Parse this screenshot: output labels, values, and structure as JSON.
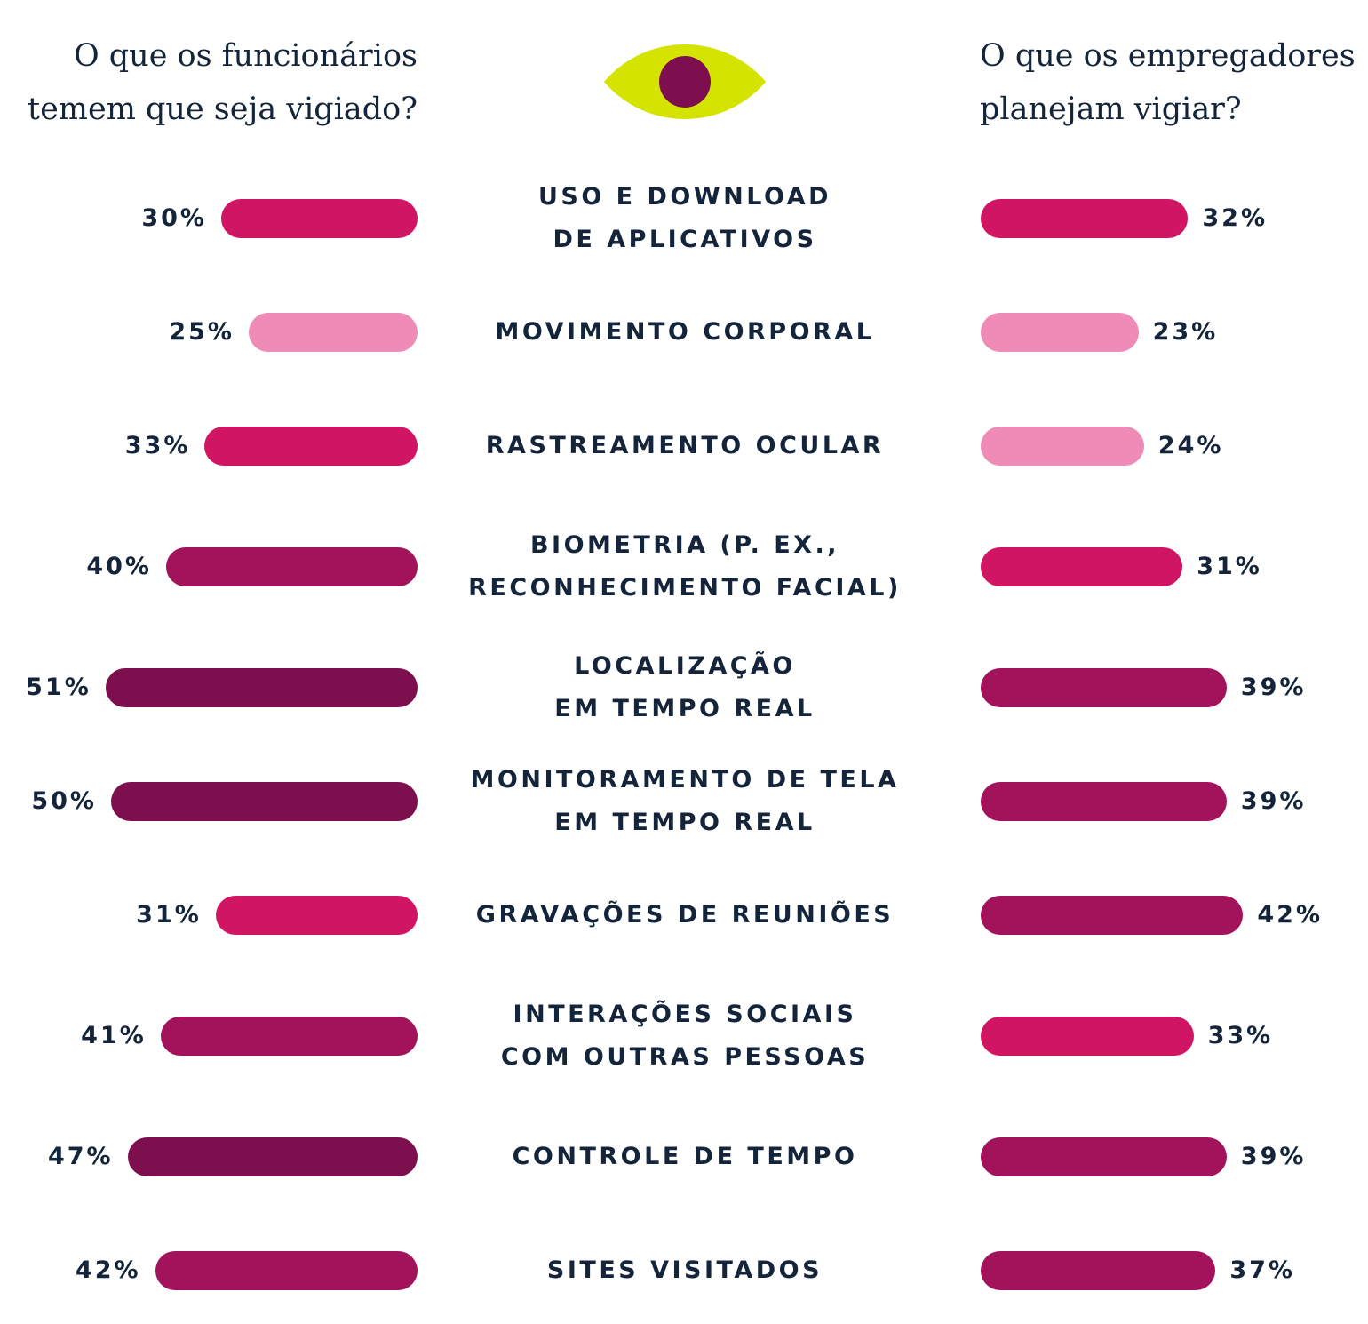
{
  "header_left": [
    "O que os funcionários",
    "temem que seja vigiado?"
  ],
  "header_right": [
    "O que os empregadores",
    "planejam vigiar?"
  ],
  "icon": "eye-icon",
  "colors": {
    "eye": "#D4E300",
    "pupil": "#7E0F4F",
    "light": "#EE8BB6",
    "bright": "#D01563",
    "mid": "#A3135C",
    "dark": "#7E0F4F"
  },
  "chart_data": {
    "type": "bar",
    "orientation": "horizontal-butterfly",
    "categories": [
      [
        "USO E DOWNLOAD",
        "DE APLICATIVOS"
      ],
      [
        "MOVIMENTO CORPORAL"
      ],
      [
        "RASTREAMENTO OCULAR"
      ],
      [
        "BIOMETRIA (P. EX.,",
        "RECONHECIMENTO FACIAL)"
      ],
      [
        "LOCALIZAÇÃO",
        "EM TEMPO REAL"
      ],
      [
        "MONITORAMENTO DE TELA",
        "EM TEMPO REAL"
      ],
      [
        "GRAVAÇÕES DE REUNIÕES"
      ],
      [
        "INTERAÇÕES SOCIAIS",
        "COM OUTRAS PESSOAS"
      ],
      [
        "CONTROLE DE TEMPO"
      ],
      [
        "SITES VISITADOS"
      ]
    ],
    "series": [
      {
        "side": "left",
        "values": [
          30,
          25,
          33,
          40,
          51,
          50,
          31,
          41,
          47,
          42
        ],
        "labels": [
          "30%",
          "25%",
          "33%",
          "40%",
          "51%",
          "50%",
          "31%",
          "41%",
          "47%",
          "42%"
        ],
        "colors": [
          "bright",
          "light",
          "bright",
          "mid",
          "dark",
          "dark",
          "bright",
          "mid",
          "dark",
          "mid"
        ]
      },
      {
        "side": "right",
        "values": [
          32,
          23,
          24,
          31,
          39,
          39,
          42,
          33,
          39,
          37
        ],
        "labels": [
          "32%",
          "23%",
          "24%",
          "31%",
          "39%",
          "39%",
          "42%",
          "33%",
          "39%",
          "37%"
        ],
        "colors": [
          "bright",
          "light",
          "light",
          "bright",
          "mid",
          "mid",
          "mid",
          "bright",
          "mid",
          "mid"
        ]
      }
    ],
    "unit": "%",
    "grid": false
  }
}
